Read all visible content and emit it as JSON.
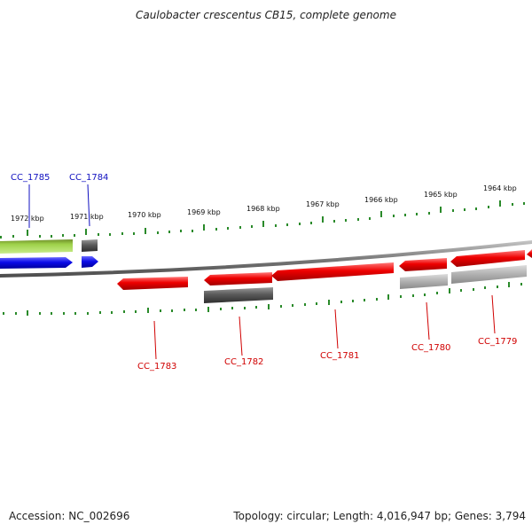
{
  "title": "Caulobacter crescentus CB15, complete genome",
  "footer": {
    "accession": "Accession: NC_002696",
    "summary": "Topology: circular; Length: 4,016,947 bp; Genes: 3,794"
  },
  "kbp_labels": [
    "1972 kbp",
    "1971 kbp",
    "1970 kbp",
    "1969 kbp",
    "1968 kbp",
    "1967 kbp",
    "1966 kbp",
    "1965 kbp",
    "1964 kbp"
  ],
  "genes": [
    {
      "locus": "CC_1785",
      "strand": "forward"
    },
    {
      "locus": "CC_1784",
      "strand": "forward"
    },
    {
      "locus": "CC_1783",
      "strand": "reverse"
    },
    {
      "locus": "CC_1782",
      "strand": "reverse"
    },
    {
      "locus": "CC_1781",
      "strand": "reverse"
    },
    {
      "locus": "CC_1780",
      "strand": "reverse"
    },
    {
      "locus": "CC_1779",
      "strand": "reverse"
    }
  ],
  "colors": {
    "forward_label": "#1010c0",
    "reverse_label": "#d00000",
    "cds_forward": "#0a0ae8",
    "cds_reverse": "#e80000",
    "gene_dark": "#555555",
    "gene_light": "#b0b0b0",
    "gene_green": "#8cc63f",
    "backbone": "#8a8a8a",
    "ticks": "#2a8a2a"
  }
}
